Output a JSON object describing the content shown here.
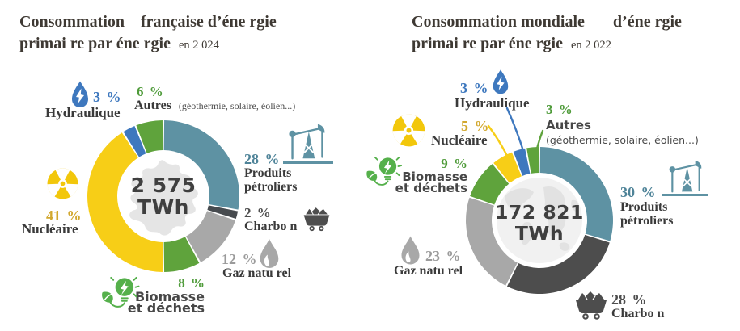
{
  "colors": {
    "teal": "#5E92A3",
    "teal_text": "#4E8398",
    "charcoal": "#4D4D4D",
    "gray": "#A8A8A8",
    "gray_text": "#9B9B9B",
    "green": "#5FA33C",
    "green_text": "#4F9B3A",
    "green_icon": "#55B04B",
    "yellow": "#F7CE17",
    "yellow_icon": "#F2C70B",
    "gold_text": "#D2A82F",
    "blue": "#3E78BE",
    "dark": "#3E3933",
    "label_dark": "#3A3A3A",
    "sans_dark": "#474747",
    "center_text": "#3F3F3F",
    "map_gray": "#E5E5E5",
    "globe_bg": "#F1F1F1",
    "globe_land": "#E2E2E2"
  },
  "chart_data": [
    {
      "type": "pie",
      "title": "Consommation française d'énergie primaire par énergie en 2024",
      "center_label": "2 575 TWh",
      "unit": "%",
      "categories": [
        "Produits pétroliers",
        "Charbon",
        "Gaz naturel",
        "Biomasse et déchets",
        "Nucléaire",
        "Hydraulique",
        "Autres (géothermie, solaire, éolien...)"
      ],
      "values": [
        28,
        2,
        12,
        8,
        41,
        3,
        6
      ],
      "colors": [
        "#5E92A3",
        "#474B4F",
        "#A8A8A8",
        "#5FA33C",
        "#F7CE17",
        "#3E78BE",
        "#5FA33C"
      ],
      "start_angle_deg": 0,
      "direction": "clockwise",
      "donut_hole": 0.6,
      "legend_position": "around"
    },
    {
      "type": "pie",
      "title": "Consommation mondiale d'énergie primaire par énergie en 2022",
      "center_label": "172 821 TWh",
      "unit": "%",
      "categories": [
        "Produits pétroliers",
        "Charbon",
        "Gaz naturel",
        "Biomasse et déchets",
        "Nucléaire",
        "Hydraulique",
        "Autres (géothermie, solaire, éolien...)"
      ],
      "values": [
        30,
        28,
        23,
        9,
        5,
        3,
        3
      ],
      "colors": [
        "#5E92A3",
        "#4D4D4D",
        "#A8A8A8",
        "#5FA33C",
        "#F7CE17",
        "#3E78BE",
        "#5FA33C"
      ],
      "start_angle_deg": 0,
      "direction": "clockwise",
      "donut_hole": 0.65,
      "legend_position": "around"
    }
  ],
  "left": {
    "title_line1": "Consommation    française d’éne rgie",
    "title_line2": "primai re par éne rgie",
    "title_year": "en 2 024",
    "center_value": "2 575",
    "center_unit": "TWh",
    "labels": {
      "hydraulique": {
        "pct": "3 %",
        "name": "Hydraulique"
      },
      "autres": {
        "pct": "6 %",
        "name": "Autres",
        "sub": "(géothermie, solaire, éolien...)"
      },
      "petrole": {
        "pct": "28 %",
        "name1": "Produits",
        "name2": "pétroliers"
      },
      "charbon": {
        "pct": "2 %",
        "name": "Charbo n"
      },
      "gaz": {
        "pct": "12 %",
        "name": "Gaz natu rel"
      },
      "biomasse": {
        "pct": "8 %",
        "name1": "Biomasse",
        "name2": "et déchets"
      },
      "nucleaire": {
        "pct": "41 %",
        "name": "Nucléaire"
      }
    }
  },
  "right": {
    "title_line1": "Consommation mondiale       d’éne rgie",
    "title_line2": "primai re par éne rgie",
    "title_year": "en 2 022",
    "center_value": "172 821",
    "center_unit": "TWh",
    "labels": {
      "hydraulique": {
        "pct": "3 %",
        "name": "Hydraulique"
      },
      "autres": {
        "pct": "3 %",
        "name": "Autres",
        "sub": "(géothermie, solaire, éolien...)"
      },
      "petrole": {
        "pct": "30 %",
        "name1": "Produits",
        "name2": "pétroliers"
      },
      "charbon": {
        "pct": "28 %",
        "name": "Charbo n"
      },
      "gaz": {
        "pct": "23 %",
        "name": "Gaz natu rel"
      },
      "biomasse": {
        "pct": "9 %",
        "name1": "Biomasse",
        "name2": "et déchets"
      },
      "nucleaire": {
        "pct": "5 %",
        "name": "Nucléaire"
      }
    }
  }
}
